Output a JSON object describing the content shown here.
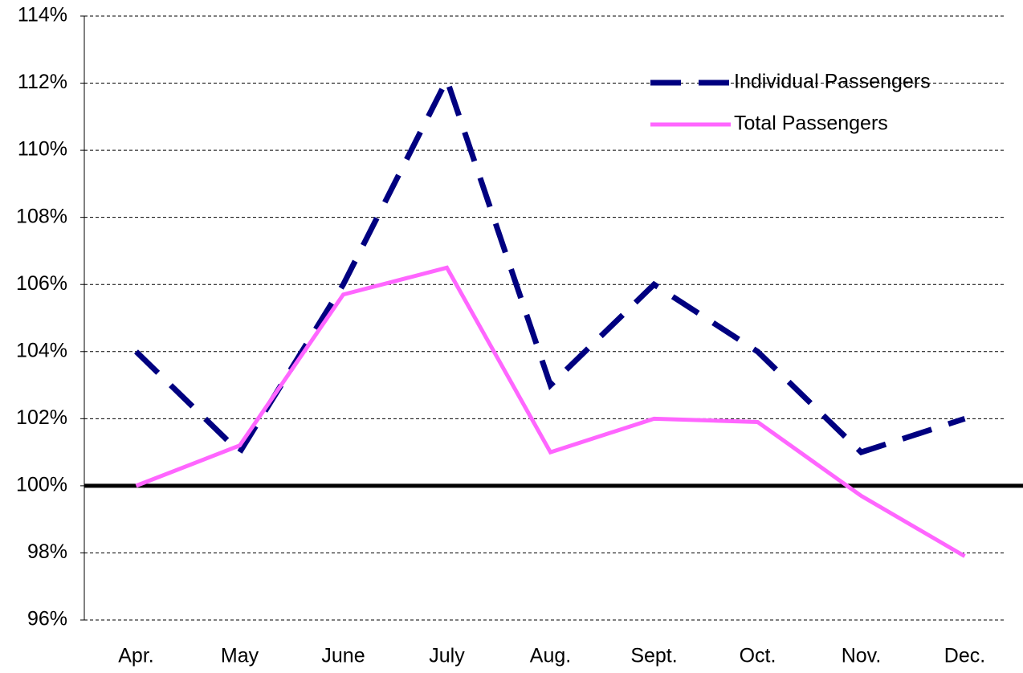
{
  "chart_data": {
    "type": "line",
    "categories": [
      "Apr.",
      "May",
      "June",
      "July",
      "Aug.",
      "Sept.",
      "Oct.",
      "Nov.",
      "Dec."
    ],
    "series": [
      {
        "name": "Individual Passengers",
        "color": "#000080",
        "dash": true,
        "values": [
          104,
          101,
          106,
          112.1,
          103,
          106,
          104,
          101,
          102
        ]
      },
      {
        "name": "Total Passengers",
        "color": "#ff66ff",
        "dash": false,
        "values": [
          100,
          101.2,
          105.7,
          106.5,
          101,
          102,
          101.9,
          99.7,
          97.9
        ]
      }
    ],
    "ylim": [
      96,
      114
    ],
    "yticks": [
      {
        "value": 96,
        "label": "96%"
      },
      {
        "value": 98,
        "label": "98%"
      },
      {
        "value": 100,
        "label": "100%"
      },
      {
        "value": 102,
        "label": "102%"
      },
      {
        "value": 104,
        "label": "104%"
      },
      {
        "value": 106,
        "label": "106%"
      },
      {
        "value": 108,
        "label": "108%"
      },
      {
        "value": 110,
        "label": "110%"
      },
      {
        "value": 112,
        "label": "112%"
      },
      {
        "value": 114,
        "label": "114%"
      }
    ],
    "baseline": 100,
    "grid": true,
    "legend": "top-right"
  }
}
